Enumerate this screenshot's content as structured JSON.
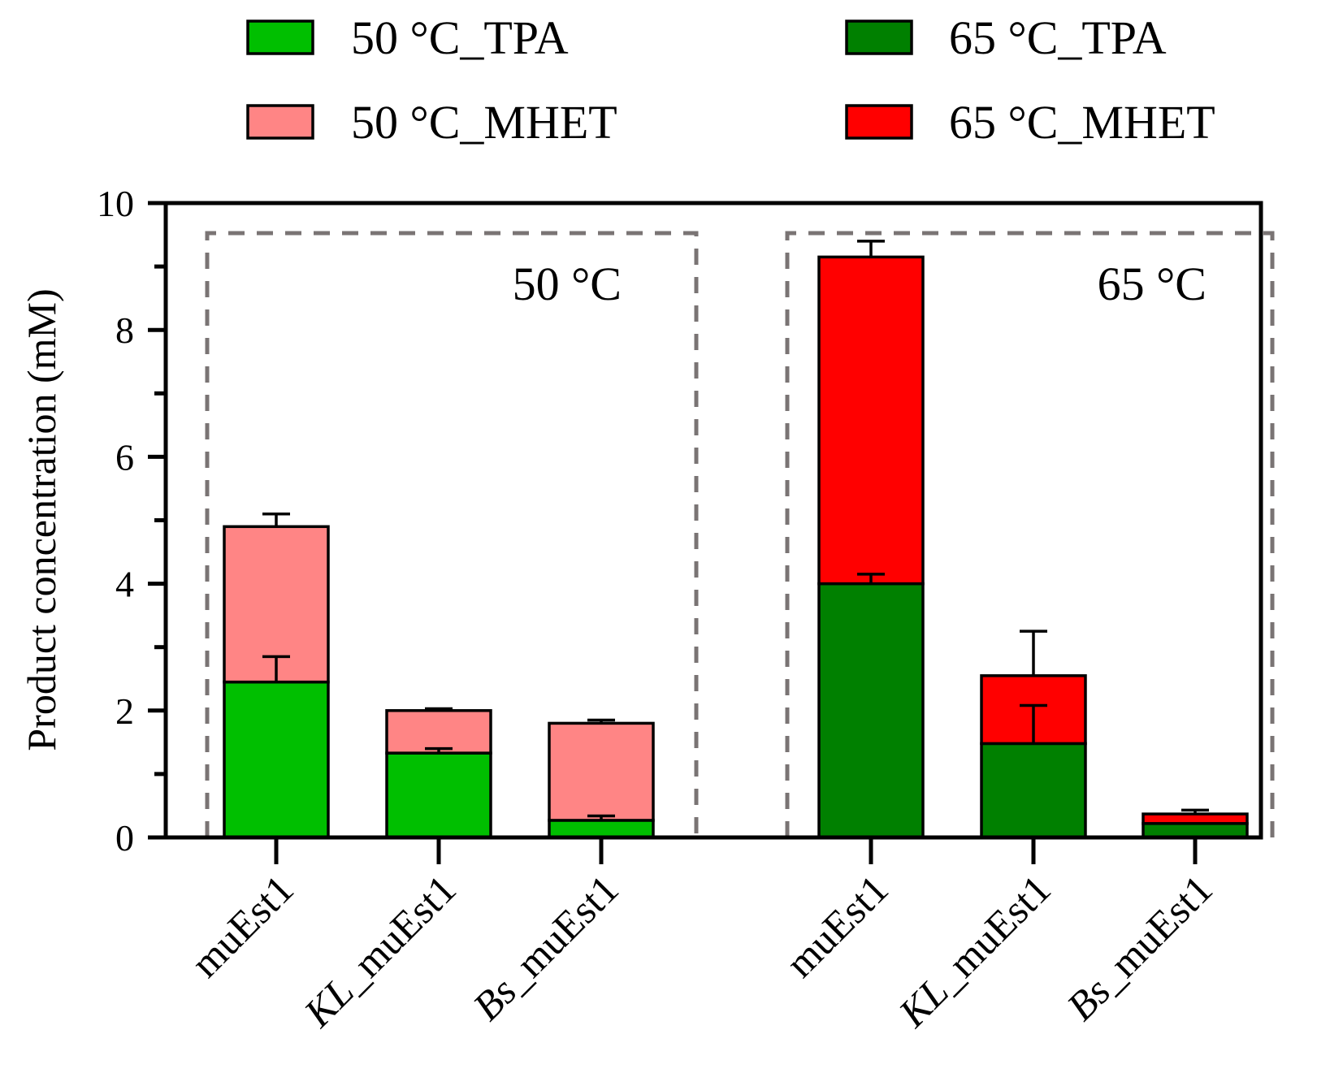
{
  "chart_data": {
    "type": "bar",
    "stacked": true,
    "title": "",
    "xlabel": "",
    "ylabel": "Product concentration (mM)",
    "ylim": [
      0,
      10
    ],
    "yticks": [
      0,
      2,
      4,
      6,
      8,
      10
    ],
    "grid": false,
    "legend_position": "top",
    "categories": [
      {
        "prefix": "",
        "suffix": "muEst1"
      },
      {
        "prefix": "KL",
        "suffix": "_muEst1"
      },
      {
        "prefix": "Bs",
        "suffix": "_muEst1"
      },
      {
        "prefix": "",
        "suffix": "muEst1"
      },
      {
        "prefix": "KL",
        "suffix": "_muEst1"
      },
      {
        "prefix": "Bs",
        "suffix": "_muEst1"
      }
    ],
    "groups": [
      {
        "label": "50 °C",
        "bars": [
          0,
          1,
          2
        ]
      },
      {
        "label": "65 °C",
        "bars": [
          3,
          4,
          5
        ]
      }
    ],
    "series": [
      {
        "name": "50 °C_TPA",
        "color": "#00bf00",
        "values": [
          2.45,
          1.33,
          0.27,
          null,
          null,
          null
        ],
        "errors": [
          0.4,
          0.07,
          0.07,
          null,
          null,
          null
        ]
      },
      {
        "name": "50 °C_MHET",
        "color": "#ff8585",
        "values": [
          2.45,
          0.67,
          1.53,
          null,
          null,
          null
        ],
        "errors": [
          0.2,
          0.03,
          0.05,
          null,
          null,
          null
        ]
      },
      {
        "name": "65 °C_TPA",
        "color": "#008000",
        "values": [
          null,
          null,
          null,
          4.0,
          1.48,
          0.22
        ],
        "errors": [
          null,
          null,
          null,
          0.15,
          0.6,
          0.0
        ]
      },
      {
        "name": "65 °C_MHET",
        "color": "#ff0000",
        "values": [
          null,
          null,
          null,
          5.15,
          1.07,
          0.15
        ],
        "errors": [
          null,
          null,
          null,
          0.25,
          0.7,
          0.06
        ]
      }
    ]
  }
}
